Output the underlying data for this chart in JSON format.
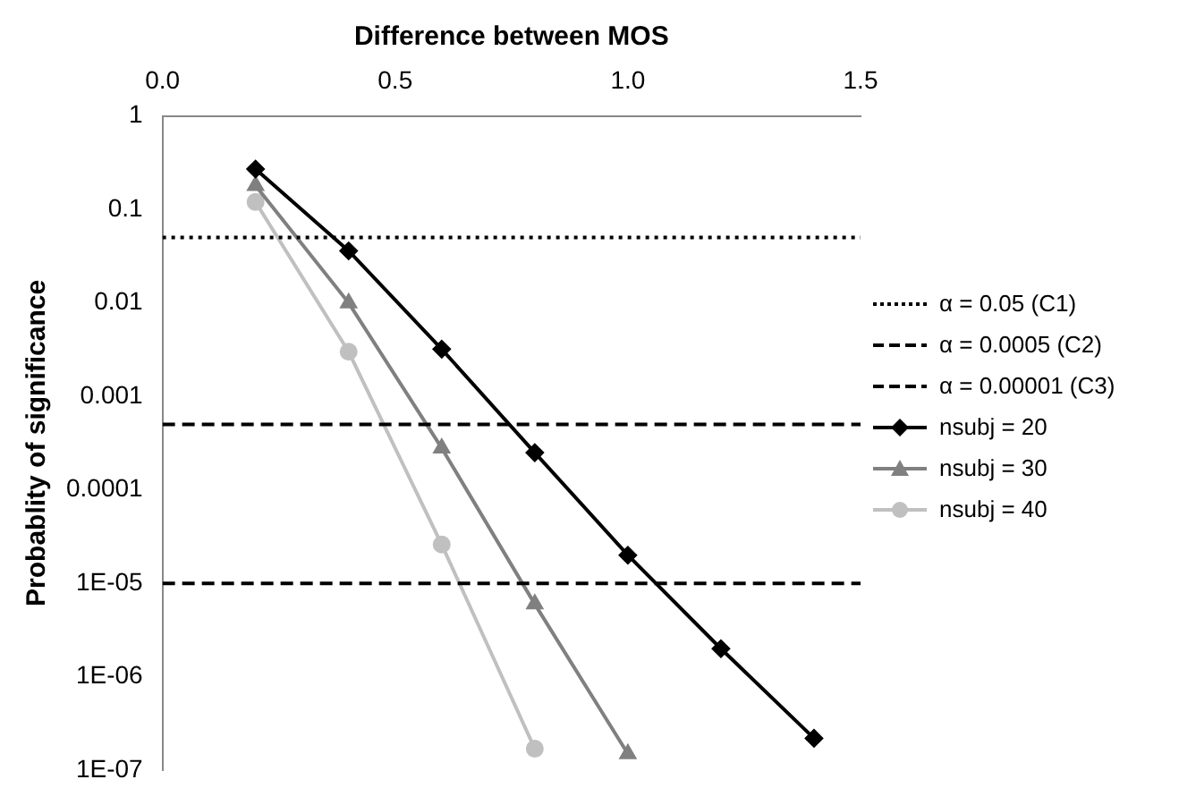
{
  "chart_data": {
    "type": "line",
    "xlabel": "Difference between MOS",
    "ylabel": "Probablity of significance",
    "xlim": [
      0,
      1.5
    ],
    "xticks": [
      {
        "value": 0,
        "label": "0.0"
      },
      {
        "value": 0.5,
        "label": "0.5"
      },
      {
        "value": 1,
        "label": "1.0"
      },
      {
        "value": 1.5,
        "label": "1.5"
      }
    ],
    "ylim": [
      1e-07,
      1
    ],
    "yticks": [
      1,
      0.1,
      0.01,
      0.001,
      0.0001,
      {
        "value": 1e-05,
        "label": "1E-05"
      },
      {
        "value": 1e-06,
        "label": "1E-06"
      },
      {
        "value": 1e-07,
        "label": "1E-07"
      }
    ],
    "log": "y",
    "grid": false,
    "legend": "right",
    "series": [
      {
        "name": "α = 0.05 (C1)",
        "color": "#000000",
        "x": [
          0,
          1.5
        ],
        "values": [
          0.05,
          0.05
        ],
        "line_style": "dotted",
        "marker": "none"
      },
      {
        "name": "α = 0.0005 (C2)",
        "color": "#000000",
        "x": [
          0,
          1.5
        ],
        "values": [
          0.0005,
          0.0005
        ],
        "line_style": "dashed",
        "marker": "none"
      },
      {
        "name": "α = 0.00001 (C3)",
        "color": "#000000",
        "x": [
          0,
          1.5
        ],
        "values": [
          1e-05,
          1e-05
        ],
        "line_style": "dashed",
        "marker": "none"
      },
      {
        "name": "nsubj = 20",
        "color": "#000000",
        "x": [
          0.2,
          0.4,
          0.6,
          0.8,
          1.0,
          1.2,
          1.4
        ],
        "values": [
          0.27,
          0.036,
          0.0032,
          0.00025,
          2e-05,
          2e-06,
          2.2e-07
        ],
        "line_style": "solid",
        "marker": "diamond"
      },
      {
        "name": "nsubj = 30",
        "color": "#808080",
        "x": [
          0.2,
          0.4,
          0.6,
          0.8,
          1.0
        ],
        "values": [
          0.18,
          0.01,
          0.00028,
          6e-06,
          1.5e-07
        ],
        "line_style": "solid",
        "marker": "triangle"
      },
      {
        "name": "nsubj = 40",
        "color": "#c0c0c0",
        "x": [
          0.2,
          0.4,
          0.6,
          0.8
        ],
        "values": [
          0.12,
          0.003,
          2.6e-05,
          1.7e-07
        ],
        "line_style": "solid",
        "marker": "circle"
      }
    ]
  }
}
